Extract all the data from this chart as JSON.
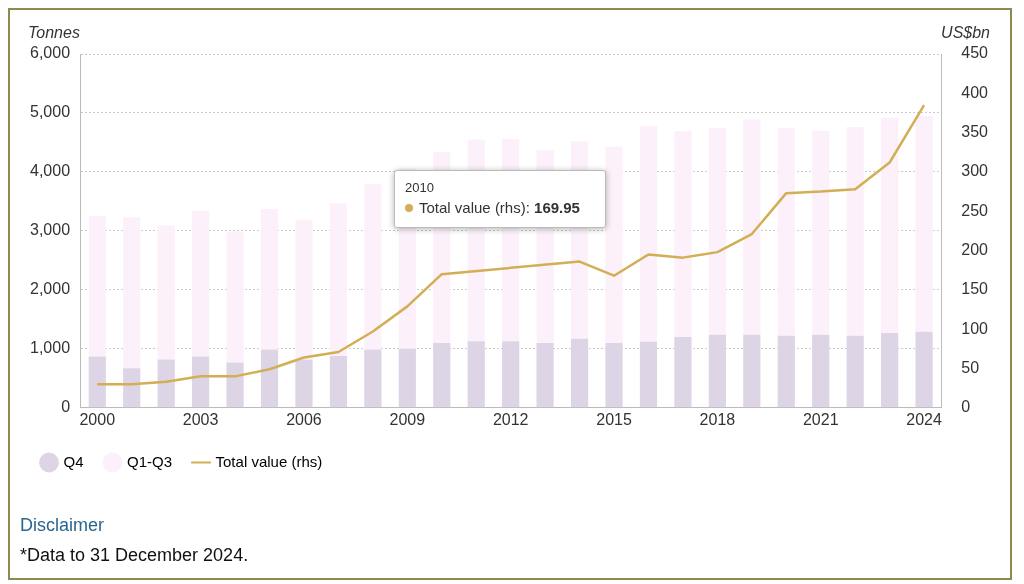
{
  "chart_data": {
    "type": "bar",
    "stacked": true,
    "ylabel": "Tonnes",
    "y2label": "US$bn",
    "x": [
      2000,
      2001,
      2002,
      2003,
      2004,
      2005,
      2006,
      2007,
      2008,
      2009,
      2010,
      2011,
      2012,
      2013,
      2014,
      2015,
      2016,
      2017,
      2018,
      2019,
      2020,
      2021,
      2022,
      2023,
      2024
    ],
    "xlim": [
      1999.5,
      2024.5
    ],
    "xticks": [
      2000,
      2003,
      2006,
      2009,
      2012,
      2015,
      2018,
      2021,
      2024
    ],
    "ylim": [
      0,
      6000
    ],
    "yticks": [
      0,
      {
        "value": 1000,
        "label": "1,000"
      },
      {
        "value": 2000,
        "label": "2,000"
      },
      {
        "value": 3000,
        "label": "3,000"
      },
      {
        "value": 4000,
        "label": "4,000"
      },
      {
        "value": 5000,
        "label": "5,000"
      },
      {
        "value": 6000,
        "label": "6,000"
      }
    ],
    "y2lim": [
      0,
      450
    ],
    "y2ticks": [
      0,
      50,
      100,
      150,
      200,
      250,
      300,
      350,
      400,
      450
    ],
    "grid": "y",
    "legend": "bottom left",
    "marker": "none",
    "line_style": "solid",
    "series": [
      {
        "name": "Q4",
        "color": "#ddd5e5",
        "values": [
          870,
          670,
          820,
          870,
          770,
          990,
          820,
          880,
          990,
          1000,
          1100,
          1130,
          1130,
          1100,
          1170,
          1100,
          1120,
          1200,
          1240,
          1240,
          1220,
          1240,
          1220,
          1270,
          1290
        ]
      },
      {
        "name": "Q1-Q3",
        "color": "#fcf1fa",
        "values": [
          2380,
          2560,
          2270,
          2470,
          2220,
          2380,
          2370,
          2590,
          2810,
          3060,
          3240,
          3420,
          3430,
          3270,
          3350,
          3330,
          3660,
          3490,
          3510,
          3650,
          3520,
          3460,
          3540,
          3650,
          3660
        ]
      },
      {
        "name": "Total value (rhs)",
        "type": "line",
        "axis": "y2",
        "color": "#d2ae55",
        "values": [
          30,
          30,
          33,
          40,
          40,
          49,
          64,
          71,
          97,
          129,
          169.95,
          null,
          null,
          null,
          186,
          168,
          195,
          191,
          198,
          221,
          273,
          275,
          278,
          312,
          385
        ]
      }
    ],
    "annotations": [
      "2010\nTotal value (rhs): 169.95",
      "Disclaimer",
      "*Data to 31 December 2024."
    ]
  }
}
